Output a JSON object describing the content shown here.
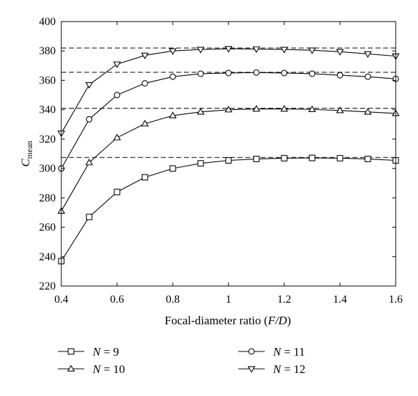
{
  "chart_data": {
    "type": "line",
    "title": "",
    "xlabel": "Focal-diameter ratio (F/D)",
    "xlabel_parts": [
      "Focal-diameter ratio (",
      "F/D",
      ")"
    ],
    "ylabel": "Cmean",
    "ylabel_main": "C",
    "ylabel_sub": "mean",
    "xlim": [
      0.4,
      1.6
    ],
    "ylim": [
      220,
      400
    ],
    "xticks": [
      "0.4",
      "0.6",
      "0.8",
      "1",
      "1.2",
      "1.4",
      "1.6"
    ],
    "yticks": [
      "220",
      "240",
      "260",
      "280",
      "300",
      "320",
      "340",
      "360",
      "380",
      "400"
    ],
    "grid": false,
    "legend_position": "bottom",
    "x": [
      0.4,
      0.5,
      0.6,
      0.7,
      0.8,
      0.9,
      1.0,
      1.1,
      1.2,
      1.3,
      1.4,
      1.5,
      1.6
    ],
    "series": [
      {
        "name": "N = 9",
        "name_var": "N",
        "name_val": " = 9",
        "marker": "square",
        "values": [
          237,
          267,
          284,
          294,
          300,
          303.5,
          305.5,
          306.5,
          307,
          307.2,
          307,
          306.5,
          305.5
        ],
        "max_dashed": 307.5
      },
      {
        "name": "N = 10",
        "name_var": "N",
        "name_val": " = 10",
        "marker": "triangle-up",
        "values": [
          271,
          304,
          321,
          330.5,
          336,
          338.5,
          340,
          340.5,
          340.5,
          340.2,
          339.5,
          338.5,
          337.5
        ],
        "max_dashed": 341
      },
      {
        "name": "N = 11",
        "name_var": "N",
        "name_val": " = 11",
        "marker": "circle",
        "values": [
          300,
          333.5,
          350,
          358,
          362.5,
          364.5,
          365,
          365.3,
          365,
          364.5,
          363.5,
          362.5,
          361
        ],
        "max_dashed": 365.5
      },
      {
        "name": "N = 12",
        "name_var": "N",
        "name_val": " = 12",
        "marker": "triangle-down",
        "values": [
          324,
          357,
          371,
          377,
          380,
          381,
          381.5,
          381.3,
          381,
          380.5,
          379.5,
          378,
          376.5
        ],
        "max_dashed": 382
      }
    ]
  }
}
